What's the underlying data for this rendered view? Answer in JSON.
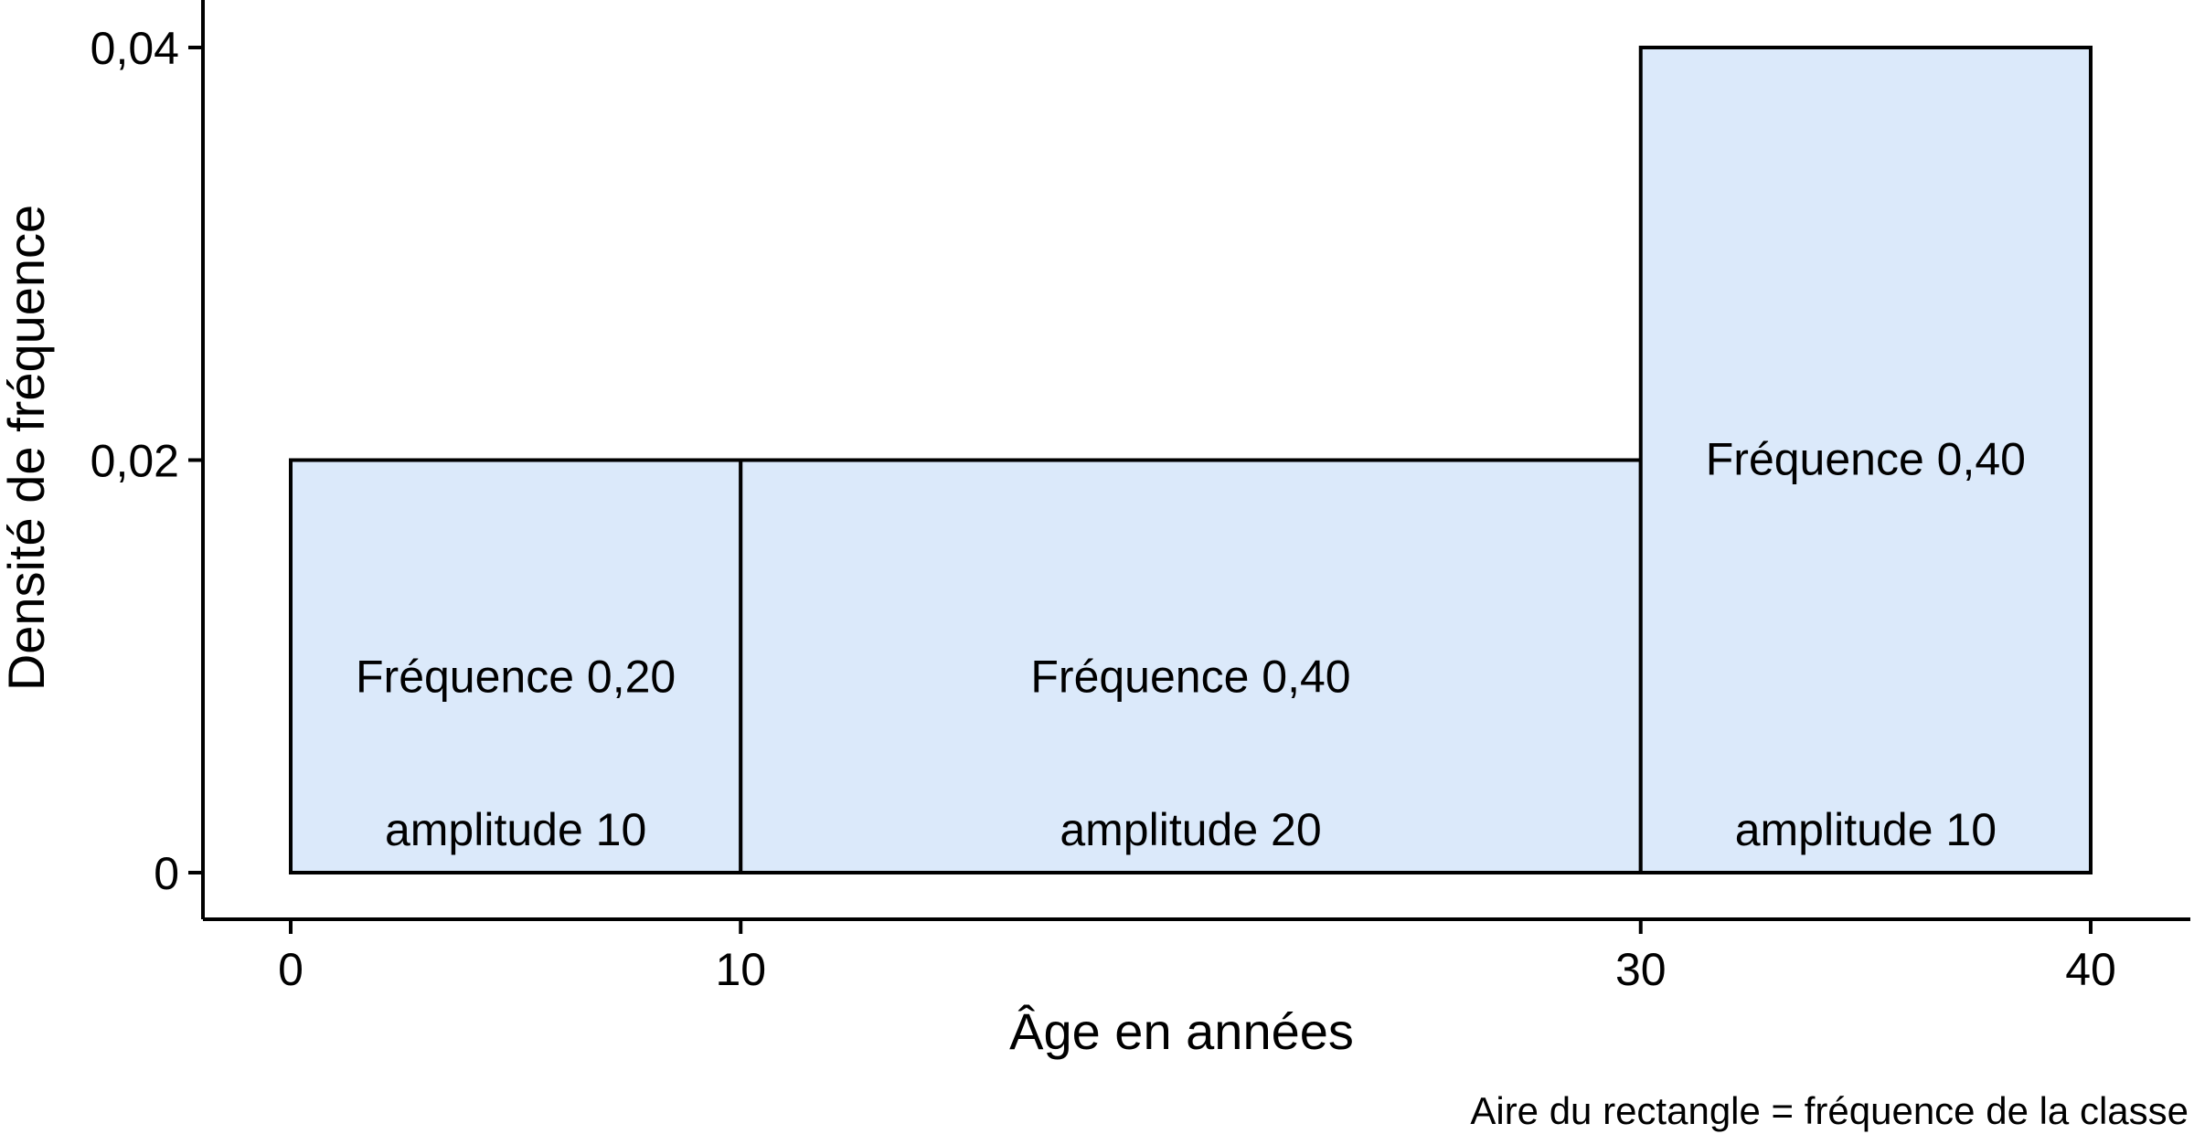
{
  "chart_data": {
    "type": "bar",
    "title": "",
    "xlabel": "Âge en années",
    "ylabel": "Densité de fréquence",
    "xlim": [
      0,
      40
    ],
    "ylim": [
      0,
      0.04
    ],
    "x_ticks": [
      {
        "value": 0,
        "label": "0"
      },
      {
        "value": 10,
        "label": "10"
      },
      {
        "value": 30,
        "label": "30"
      },
      {
        "value": 40,
        "label": "40"
      }
    ],
    "y_ticks": [
      {
        "value": 0,
        "label": "0"
      },
      {
        "value": 0.02,
        "label": "0,02"
      },
      {
        "value": 0.04,
        "label": "0,04"
      }
    ],
    "bins": [
      {
        "start": 0,
        "end": 10,
        "density": 0.02,
        "freq_label": "Fréquence 0,20",
        "width_label": "amplitude 10"
      },
      {
        "start": 10,
        "end": 30,
        "density": 0.02,
        "freq_label": "Fréquence 0,40",
        "width_label": "amplitude 20"
      },
      {
        "start": 30,
        "end": 40,
        "density": 0.04,
        "freq_label": "Fréquence 0,40",
        "width_label": "amplitude 10"
      }
    ],
    "grid": false,
    "bar_color": "#dbe9fa",
    "edge_color": "#000000",
    "caption": "Aire du rectangle = fréquence de la classe"
  }
}
